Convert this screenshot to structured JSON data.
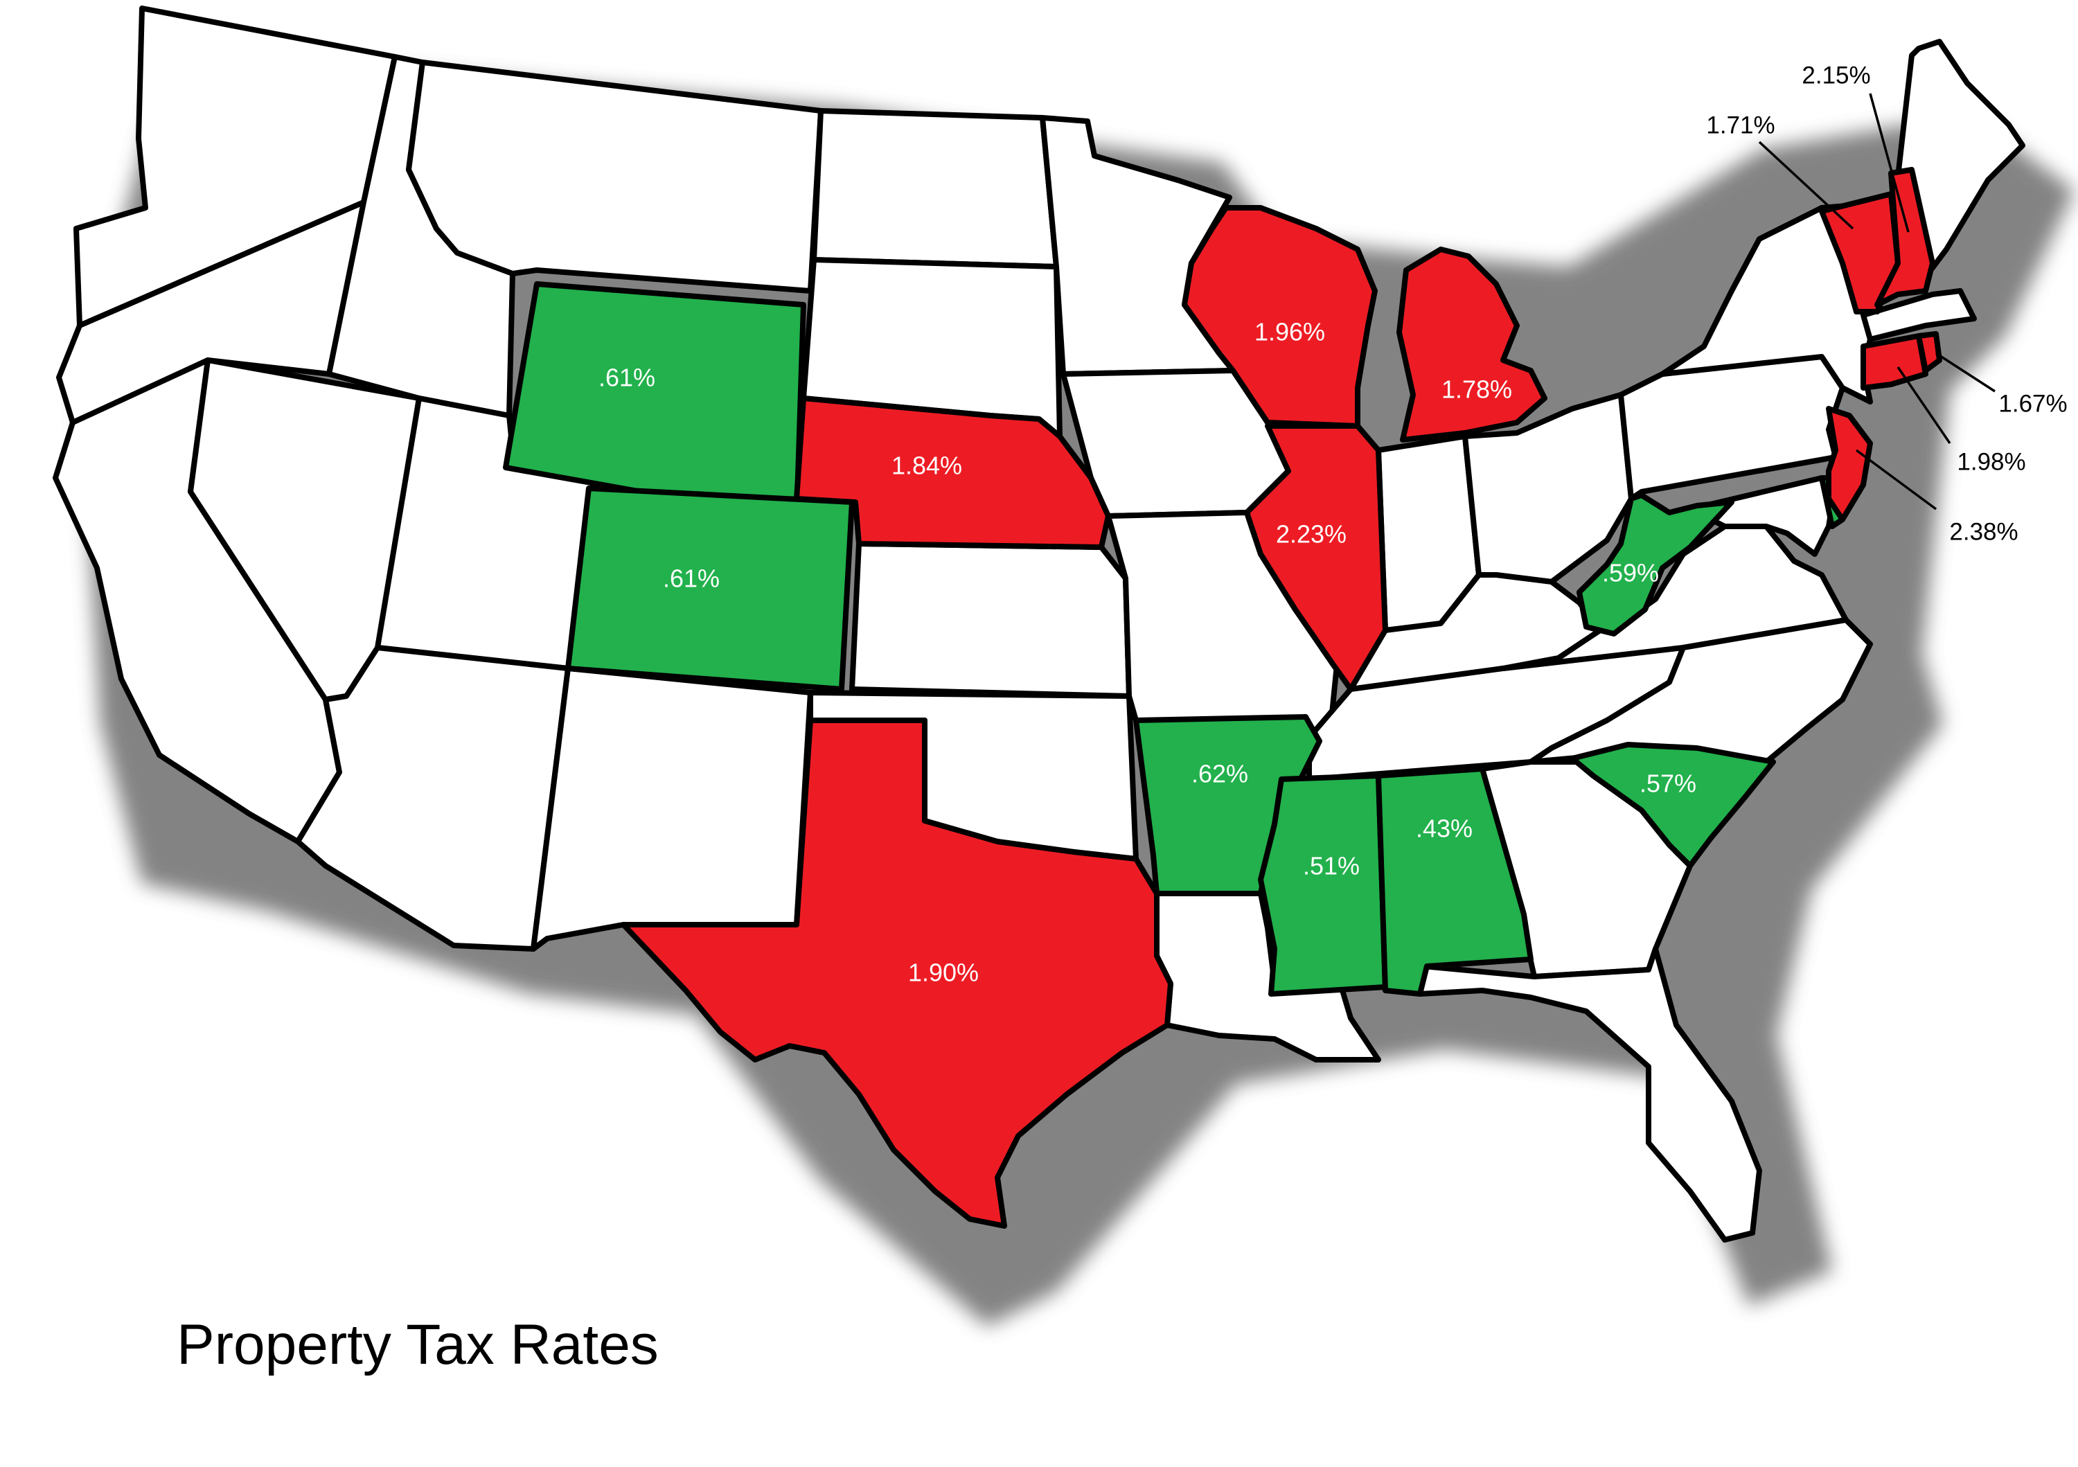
{
  "title": "Property Tax Rates",
  "colors": {
    "high": "#ed1c24",
    "low": "#22b14c",
    "other": "#ffffff",
    "outline": "#000000",
    "shadow": "#5a5a5a"
  },
  "states": {
    "wyoming": ".61%",
    "colorado": ".61%",
    "nebraska": "1.84%",
    "texas": "1.90%",
    "arkansas": ".62%",
    "mississippi": ".51%",
    "alabama": ".43%",
    "wisconsin": "1.96%",
    "michigan": "1.78%",
    "illinois": "2.23%",
    "west_virginia": ".59%",
    "south_carolina": ".57%",
    "vermont": "1.71%",
    "new_hampshire": "2.15%",
    "rhode_island": "1.67%",
    "connecticut": "1.98%",
    "new_jersey": "2.38%"
  }
}
